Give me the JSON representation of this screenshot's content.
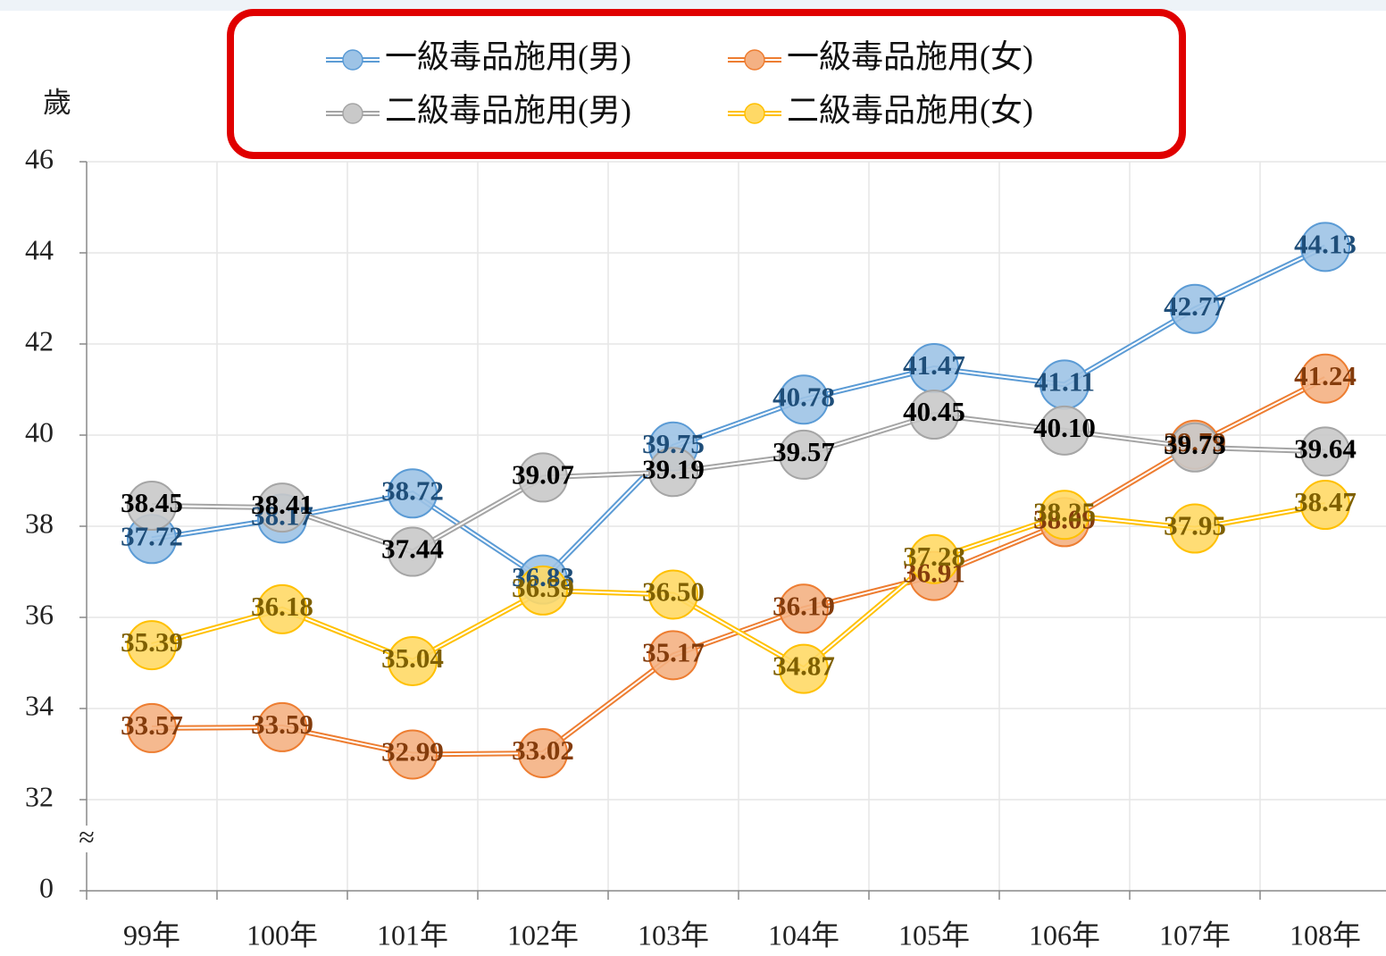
{
  "chart_data": {
    "type": "line",
    "y_label": "歲",
    "categories": [
      "99年",
      "100年",
      "101年",
      "102年",
      "103年",
      "104年",
      "105年",
      "106年",
      "107年",
      "108年"
    ],
    "ylim": [
      0,
      46
    ],
    "yticks": [
      0,
      32,
      34,
      36,
      38,
      40,
      42,
      44,
      46
    ],
    "y_break": {
      "from": 0,
      "to": 32,
      "symbol": "≈"
    },
    "grid": true,
    "legend": "top",
    "series": [
      {
        "name": "一級毒品施用(男)",
        "color": "#5b9bd5",
        "marker_color": "#9dc3e6",
        "label_color": "#1f4e79",
        "values": [
          37.72,
          38.17,
          38.72,
          36.83,
          39.75,
          40.78,
          41.47,
          41.11,
          42.77,
          44.13
        ],
        "value_labels": [
          "37.72",
          "38.17",
          "38.72",
          "36.83",
          "39.75",
          "40.78",
          "41.47",
          "41.11",
          "42.77",
          "44.13"
        ]
      },
      {
        "name": "一級毒品施用(女)",
        "color": "#ed7d31",
        "marker_color": "#f4b183",
        "label_color": "#843c0c",
        "values": [
          33.57,
          33.59,
          32.99,
          33.02,
          35.17,
          36.19,
          36.91,
          38.09,
          39.79,
          41.24
        ],
        "value_labels": [
          "33.57",
          "33.59",
          "32.99",
          "33.02",
          "35.17",
          "36.19",
          "36.91",
          "38.09",
          "39.79",
          "41.24"
        ]
      },
      {
        "name": "二級毒品施用(男)",
        "color": "#a5a5a5",
        "marker_color": "#c9c9c9",
        "label_color": "#000000",
        "values": [
          38.45,
          38.41,
          37.44,
          39.07,
          39.19,
          39.57,
          40.45,
          40.1,
          39.73,
          39.64
        ],
        "value_labels": [
          "38.45",
          "38.41",
          "37.44",
          "39.07",
          "39.19",
          "39.57",
          "40.45",
          "40.10",
          "39.73",
          "39.64"
        ]
      },
      {
        "name": "二級毒品施用(女)",
        "color": "#ffc000",
        "marker_color": "#ffd966",
        "label_color": "#7f6000",
        "values": [
          35.39,
          36.18,
          35.04,
          36.59,
          36.5,
          34.87,
          37.28,
          38.25,
          37.95,
          38.47
        ],
        "value_labels": [
          "35.39",
          "36.18",
          "35.04",
          "36.59",
          "36.50",
          "34.87",
          "37.28",
          "38.25",
          "37.95",
          "38.47"
        ]
      }
    ]
  }
}
